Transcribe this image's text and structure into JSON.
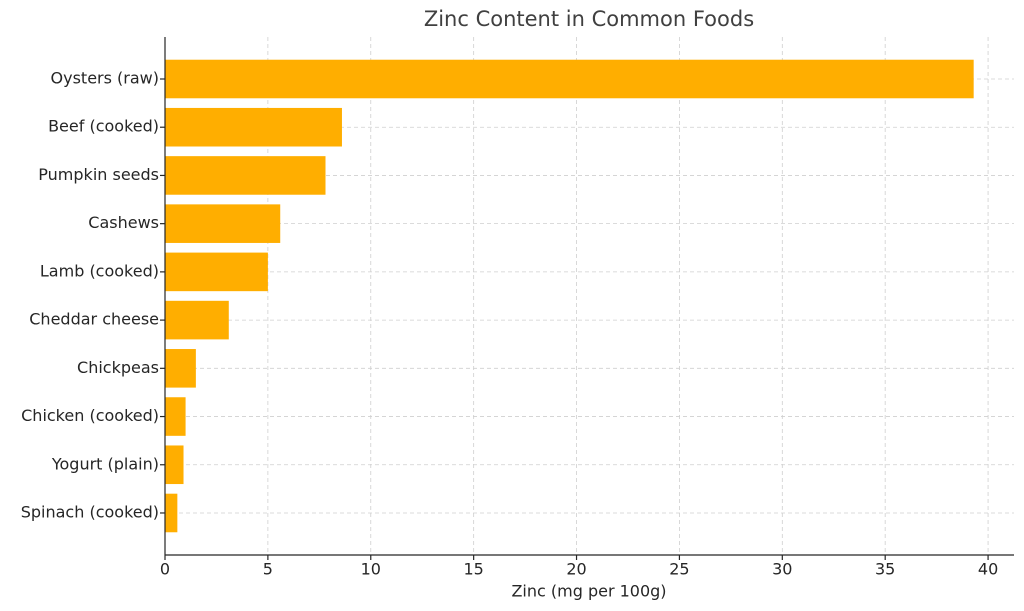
{
  "chart_data": {
    "type": "hbar",
    "title": "Zinc Content in Common Foods",
    "x_label": "Zinc (mg per 100g)",
    "categories": [
      "Oysters (raw)",
      "Beef (cooked)",
      "Pumpkin seeds",
      "Cashews",
      "Lamb (cooked)",
      "Cheddar cheese",
      "Chickpeas",
      "Chicken (cooked)",
      "Yogurt (plain)",
      "Spinach (cooked)"
    ],
    "values": [
      39.3,
      8.6,
      7.8,
      5.6,
      5.0,
      3.1,
      1.5,
      1.0,
      0.9,
      0.6
    ],
    "color": "#ffae00",
    "xlim": [
      0,
      41.26
    ],
    "xticks": [
      0,
      5,
      10,
      15,
      20,
      25,
      30,
      35,
      40
    ],
    "grid": true
  }
}
